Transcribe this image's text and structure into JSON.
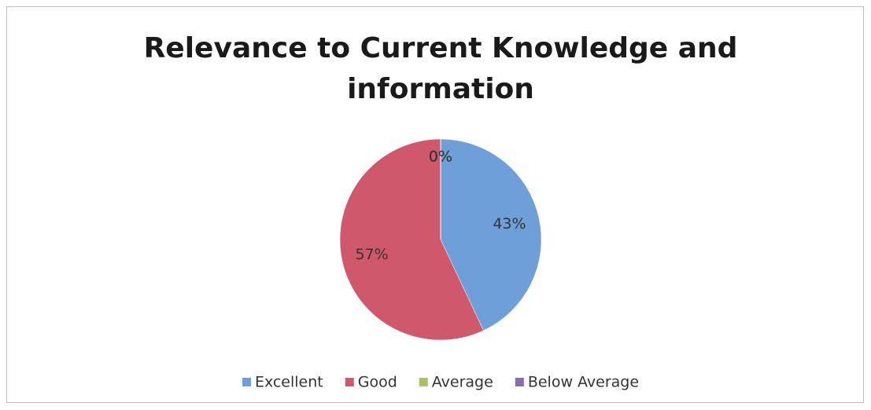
{
  "chart_data": {
    "type": "pie",
    "title": "Relevance to Current Knowledge and information",
    "categories": [
      "Excellent",
      "Good",
      "Average",
      "Below Average"
    ],
    "values": [
      43,
      57,
      0,
      0
    ],
    "value_labels": [
      "43%",
      "57%",
      "0%",
      "0%"
    ],
    "colors": [
      "#6f9fd9",
      "#d0586c",
      "#a9c45e",
      "#8a6cb0"
    ],
    "legend": "bottom"
  }
}
